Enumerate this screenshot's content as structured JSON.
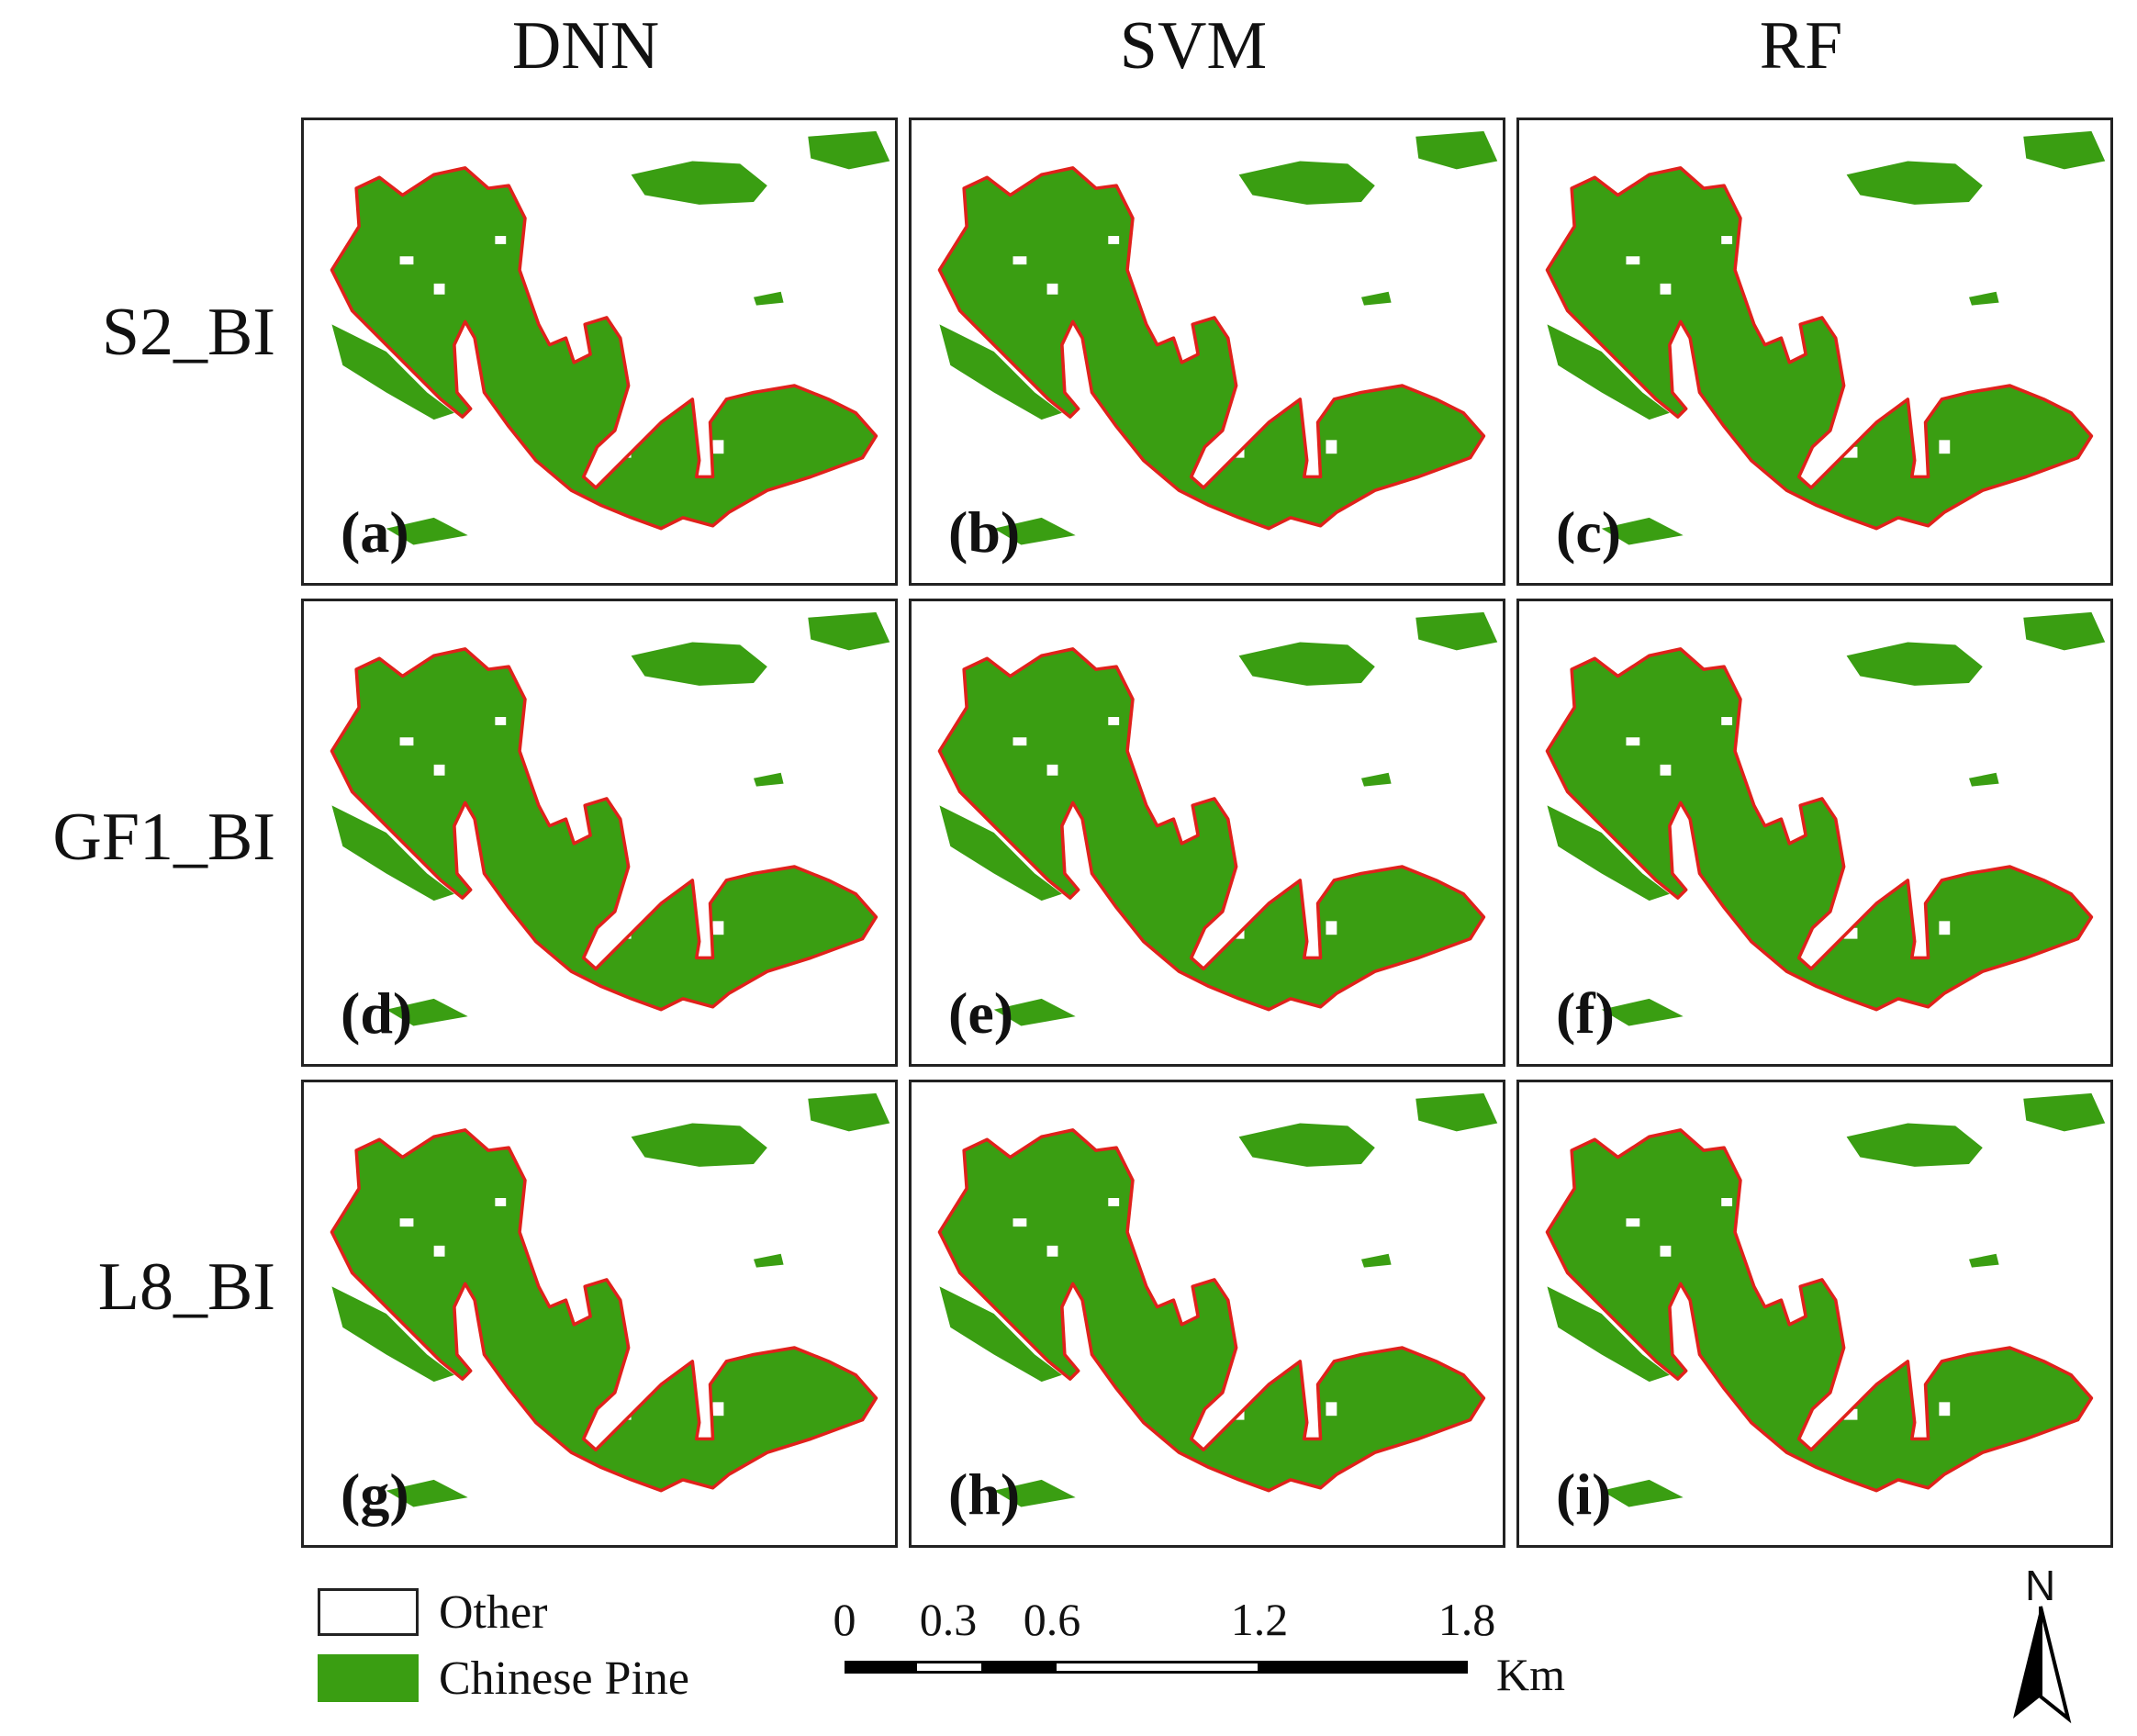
{
  "columns": [
    "DNN",
    "SVM",
    "RF"
  ],
  "rows": [
    "S2_BI",
    "GF1_BI",
    "L8_BI"
  ],
  "panels": [
    {
      "label": "(a)",
      "row": "S2_BI",
      "method": "DNN"
    },
    {
      "label": "(b)",
      "row": "S2_BI",
      "method": "SVM"
    },
    {
      "label": "(c)",
      "row": "S2_BI",
      "method": "RF"
    },
    {
      "label": "(d)",
      "row": "GF1_BI",
      "method": "DNN"
    },
    {
      "label": "(e)",
      "row": "GF1_BI",
      "method": "SVM"
    },
    {
      "label": "(f)",
      "row": "GF1_BI",
      "method": "RF"
    },
    {
      "label": "(g)",
      "row": "L8_BI",
      "method": "DNN"
    },
    {
      "label": "(h)",
      "row": "L8_BI",
      "method": "SVM"
    },
    {
      "label": "(i)",
      "row": "L8_BI",
      "method": "RF"
    }
  ],
  "legend": {
    "other": "Other",
    "pine": "Chinese Pine"
  },
  "scale": {
    "ticks": [
      "0",
      "0.3",
      "0.6",
      "1.2",
      "1.8"
    ],
    "unit": "Km"
  },
  "north": "N",
  "colors": {
    "pine": "#3a9e12",
    "boundary": "#e0211b",
    "other": "#ffffff"
  }
}
